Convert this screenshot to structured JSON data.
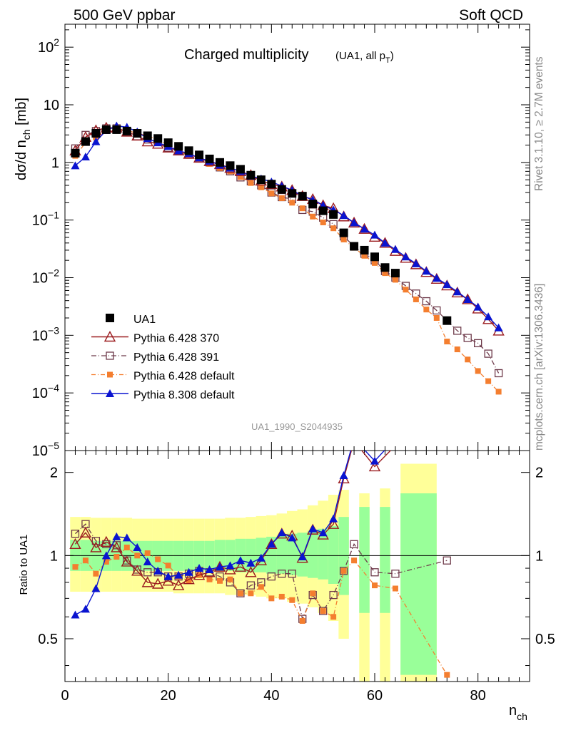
{
  "header": {
    "left": "500 GeV ppbar",
    "right": "Soft QCD"
  },
  "side": {
    "rivet": "Rivet 3.1.10, ≥ 2.7M events",
    "mcplots": "mcplots.cern.ch [arXiv:1306.3436]"
  },
  "title": {
    "main": "Charged multiplicity",
    "sub_prefix": "(UA1, all p",
    "sub_subscript": "T",
    "sub_suffix": ")"
  },
  "analysis_id": "UA1_1990_S2044935",
  "axes": {
    "ylabel_top": "dσ/d n",
    "ylabel_top_sub": "ch",
    "ylabel_top_unit": " [mb]",
    "ylabel_bottom": "Ratio to UA1",
    "xlabel": "n",
    "xlabel_sub": "ch",
    "xticks": [
      "0",
      "20",
      "40",
      "60",
      "80"
    ],
    "yticks_top": [
      {
        "v": 100,
        "base": "10",
        "exp": "2"
      },
      {
        "v": 10,
        "base": "10",
        "exp": ""
      },
      {
        "v": 1,
        "base": "1",
        "exp": ""
      },
      {
        "v": 0.1,
        "base": "10",
        "exp": "−1"
      },
      {
        "v": 0.01,
        "base": "10",
        "exp": "−2"
      },
      {
        "v": 0.001,
        "base": "10",
        "exp": "−3"
      },
      {
        "v": 0.0001,
        "base": "10",
        "exp": "−4"
      },
      {
        "v": 1e-05,
        "base": "10",
        "exp": "−5"
      }
    ],
    "yticks_bottom": [
      "0.5",
      "1",
      "2"
    ]
  },
  "legend": [
    {
      "label": "UA1",
      "series": "data"
    },
    {
      "label": "Pythia 6.428 370",
      "series": "p370"
    },
    {
      "label": "Pythia 6.428 391",
      "series": "p391"
    },
    {
      "label": "Pythia 6.428 default",
      "series": "p6def"
    },
    {
      "label": "Pythia 8.308 default",
      "series": "p8def"
    }
  ],
  "colors": {
    "data": "#000000",
    "p370": "#9b1b1f",
    "p391": "#6e3a4a",
    "p6def": "#f47e2f",
    "p8def": "#0a14d0",
    "band_inner": "#99ff99",
    "band_outer": "#ffff99"
  },
  "chart_data": {
    "type": "line",
    "x_range": [
      0,
      90
    ],
    "y_range_top": [
      1e-05,
      250
    ],
    "y_scale_top": "log",
    "y_range_bottom": [
      0.35,
      2.4
    ],
    "y_scale_bottom": "log",
    "legend_position": "lower-left",
    "series": [
      {
        "name": "UA1",
        "key": "data",
        "x": [
          2,
          4,
          6,
          8,
          10,
          12,
          14,
          16,
          18,
          20,
          22,
          24,
          26,
          28,
          30,
          32,
          34,
          36,
          38,
          40,
          42,
          44,
          46,
          48,
          50,
          52,
          54,
          56,
          58,
          60,
          62,
          64,
          74
        ],
        "y": [
          1.45,
          2.3,
          3.2,
          3.7,
          3.7,
          3.5,
          3.2,
          2.9,
          2.6,
          2.2,
          1.9,
          1.6,
          1.35,
          1.15,
          1.0,
          0.88,
          0.76,
          0.6,
          0.5,
          0.42,
          0.34,
          0.29,
          0.26,
          0.19,
          0.145,
          0.125,
          0.06,
          0.035,
          0.03,
          0.023,
          0.015,
          0.012,
          0.0018
        ]
      },
      {
        "name": "Pythia 6.428 370",
        "key": "p370",
        "x": [
          2,
          4,
          6,
          8,
          10,
          12,
          14,
          16,
          18,
          20,
          22,
          24,
          26,
          28,
          30,
          32,
          34,
          36,
          38,
          40,
          42,
          44,
          46,
          48,
          50,
          52,
          54,
          56,
          58,
          60,
          62,
          64,
          66,
          68,
          70,
          72,
          74,
          76,
          78,
          80,
          82,
          84
        ],
        "y": [
          1.6,
          2.75,
          3.6,
          4.0,
          4.0,
          3.4,
          2.9,
          2.3,
          2.1,
          1.8,
          1.6,
          1.4,
          1.2,
          1.05,
          0.93,
          0.8,
          0.7,
          0.6,
          0.48,
          0.42,
          0.38,
          0.33,
          0.26,
          0.23,
          0.18,
          0.16,
          0.115,
          0.09,
          0.07,
          0.051,
          0.04,
          0.029,
          0.022,
          0.017,
          0.0125,
          0.0095,
          0.0073,
          0.0055,
          0.0042,
          0.0029,
          0.0019,
          0.0012
        ]
      },
      {
        "name": "Pythia 6.428 391",
        "key": "p391",
        "x": [
          2,
          4,
          6,
          8,
          10,
          12,
          14,
          16,
          18,
          20,
          22,
          24,
          26,
          28,
          30,
          32,
          34,
          36,
          38,
          40,
          42,
          44,
          46,
          48,
          50,
          52,
          54,
          56,
          58,
          60,
          62,
          64,
          66,
          68,
          70,
          72,
          74,
          76,
          78,
          80,
          82,
          84
        ],
        "y": [
          1.75,
          3.0,
          3.5,
          3.9,
          3.9,
          3.35,
          2.85,
          2.5,
          2.25,
          1.8,
          1.6,
          1.4,
          1.2,
          1.0,
          0.82,
          0.7,
          0.55,
          0.47,
          0.4,
          0.3,
          0.25,
          0.23,
          0.15,
          0.14,
          0.11,
          0.085,
          0.052,
          0.035,
          0.026,
          0.02,
          0.013,
          0.01,
          0.0072,
          0.0053,
          0.0039,
          0.0027,
          0.0018,
          0.0012,
          0.0009,
          0.00073,
          0.00048,
          0.00022
        ]
      },
      {
        "name": "Pythia 6.428 default",
        "key": "p6def",
        "x": [
          2,
          4,
          6,
          8,
          10,
          12,
          14,
          16,
          18,
          20,
          22,
          24,
          26,
          28,
          30,
          32,
          34,
          36,
          38,
          40,
          42,
          44,
          46,
          48,
          50,
          52,
          54,
          56,
          58,
          60,
          62,
          64,
          66,
          68,
          70,
          72,
          74,
          76,
          78,
          80,
          82,
          84
        ],
        "y": [
          1.3,
          2.2,
          2.7,
          3.5,
          3.65,
          3.6,
          3.2,
          2.9,
          2.5,
          2.0,
          1.6,
          1.3,
          1.15,
          0.94,
          0.8,
          0.7,
          0.56,
          0.44,
          0.37,
          0.29,
          0.24,
          0.2,
          0.16,
          0.115,
          0.091,
          0.072,
          0.046,
          0.033,
          0.024,
          0.018,
          0.012,
          0.0092,
          0.0062,
          0.0042,
          0.0028,
          0.002,
          0.00078,
          0.00057,
          0.00038,
          0.00024,
          0.00016,
          0.000105
        ]
      },
      {
        "name": "Pythia 8.308 default",
        "key": "p8def",
        "x": [
          2,
          4,
          6,
          8,
          10,
          12,
          14,
          16,
          18,
          20,
          22,
          24,
          26,
          28,
          30,
          32,
          34,
          36,
          38,
          40,
          42,
          44,
          46,
          48,
          50,
          52,
          54,
          56,
          58,
          60,
          62,
          64,
          66,
          68,
          70,
          72,
          74,
          76,
          78,
          80,
          82,
          84
        ],
        "y": [
          0.88,
          1.25,
          2.3,
          3.6,
          4.3,
          4.1,
          3.4,
          2.6,
          2.2,
          1.9,
          1.6,
          1.42,
          1.2,
          1.05,
          0.9,
          0.8,
          0.7,
          0.58,
          0.52,
          0.46,
          0.39,
          0.33,
          0.26,
          0.225,
          0.18,
          0.15,
          0.12,
          0.09,
          0.07,
          0.055,
          0.04,
          0.031,
          0.023,
          0.0175,
          0.013,
          0.0098,
          0.0076,
          0.0057,
          0.0042,
          0.0031,
          0.0021,
          0.00135
        ]
      }
    ],
    "ratio_series": [
      {
        "key": "p370",
        "x": [
          2,
          4,
          6,
          8,
          10,
          12,
          14,
          16,
          18,
          20,
          22,
          24,
          26,
          28,
          30,
          32,
          34,
          36,
          38,
          40,
          42,
          44,
          46,
          48,
          50,
          52,
          54,
          56,
          60,
          64
        ],
        "y": [
          1.1,
          1.21,
          1.07,
          1.12,
          1.07,
          0.95,
          0.88,
          0.8,
          0.79,
          0.81,
          0.78,
          0.82,
          0.85,
          0.87,
          0.91,
          0.89,
          0.91,
          0.87,
          0.96,
          1.1,
          1.2,
          1.18,
          0.98,
          1.24,
          1.19,
          1.3,
          1.9,
          2.6,
          2.1,
          2.5
        ]
      },
      {
        "key": "p391",
        "x": [
          2,
          4,
          6,
          8,
          10,
          12,
          14,
          16,
          18,
          20,
          22,
          24,
          26,
          28,
          30,
          32,
          34,
          36,
          38,
          40,
          42,
          44,
          46,
          48,
          50,
          52,
          54,
          56,
          60,
          64,
          74
        ],
        "y": [
          1.2,
          1.3,
          1.13,
          1.1,
          1.09,
          0.96,
          0.89,
          0.87,
          0.87,
          0.84,
          0.84,
          0.86,
          0.88,
          0.87,
          0.84,
          0.8,
          0.73,
          0.78,
          0.8,
          0.84,
          0.86,
          0.86,
          0.59,
          0.72,
          0.63,
          0.72,
          0.88,
          1.1,
          0.87,
          0.86,
          0.96
        ]
      },
      {
        "key": "p6def",
        "x": [
          2,
          4,
          6,
          8,
          10,
          12,
          14,
          16,
          18,
          20,
          22,
          24,
          26,
          28,
          30,
          32,
          34,
          36,
          38,
          40,
          42,
          44,
          46,
          48,
          50,
          52,
          54,
          56,
          60,
          64,
          74
        ],
        "y": [
          0.91,
          0.96,
          0.86,
          0.95,
          0.99,
          1.07,
          1.0,
          1.02,
          0.97,
          0.92,
          0.84,
          0.81,
          0.85,
          0.82,
          0.81,
          0.82,
          0.73,
          0.73,
          0.77,
          0.7,
          0.71,
          0.69,
          0.58,
          0.73,
          0.63,
          0.6,
          0.88,
          0.96,
          0.78,
          0.76,
          0.37
        ]
      },
      {
        "key": "p8def",
        "x": [
          2,
          4,
          6,
          8,
          10,
          12,
          14,
          16,
          18,
          20,
          22,
          24,
          26,
          28,
          30,
          32,
          34,
          36,
          38,
          40,
          42,
          44,
          46,
          48,
          50,
          52,
          54,
          56,
          60,
          64
        ],
        "y": [
          0.61,
          0.64,
          0.76,
          1.0,
          1.17,
          1.16,
          1.07,
          0.95,
          0.88,
          0.84,
          0.85,
          0.87,
          0.9,
          0.89,
          0.91,
          0.92,
          0.96,
          0.94,
          0.98,
          1.1,
          1.21,
          1.16,
          0.99,
          1.25,
          1.21,
          1.36,
          1.95,
          2.65,
          2.2,
          2.65
        ]
      }
    ],
    "uncertainty_bands": {
      "x_edges": [
        1,
        3,
        5,
        7,
        9,
        11,
        13,
        15,
        17,
        19,
        21,
        23,
        25,
        27,
        29,
        31,
        33,
        35,
        37,
        39,
        41,
        43,
        45,
        47,
        49,
        51,
        53,
        55,
        57,
        59,
        61,
        63,
        65,
        72,
        76
      ],
      "inner": [
        [
          0.88,
          1.14
        ],
        [
          0.88,
          1.14
        ],
        [
          0.88,
          1.13
        ],
        [
          0.88,
          1.13
        ],
        [
          0.88,
          1.13
        ],
        [
          0.88,
          1.13
        ],
        [
          0.88,
          1.13
        ],
        [
          0.88,
          1.13
        ],
        [
          0.88,
          1.13
        ],
        [
          0.88,
          1.13
        ],
        [
          0.88,
          1.13
        ],
        [
          0.88,
          1.13
        ],
        [
          0.88,
          1.13
        ],
        [
          0.88,
          1.13
        ],
        [
          0.88,
          1.14
        ],
        [
          0.88,
          1.14
        ],
        [
          0.87,
          1.15
        ],
        [
          0.87,
          1.15
        ],
        [
          0.87,
          1.16
        ],
        [
          0.86,
          1.17
        ],
        [
          0.86,
          1.18
        ],
        [
          0.85,
          1.2
        ],
        [
          0.84,
          1.21
        ],
        [
          0.83,
          1.23
        ],
        [
          0.82,
          1.25
        ],
        [
          0.79,
          1.28
        ],
        [
          0.72,
          1.38
        ],
        null,
        [
          0.62,
          1.5
        ],
        null,
        [
          0.62,
          1.5
        ],
        null,
        [
          0.37,
          1.68
        ],
        null
      ],
      "outer": [
        [
          0.74,
          1.38
        ],
        [
          0.74,
          1.38
        ],
        [
          0.74,
          1.37
        ],
        [
          0.74,
          1.37
        ],
        [
          0.74,
          1.37
        ],
        [
          0.74,
          1.37
        ],
        [
          0.74,
          1.36
        ],
        [
          0.74,
          1.36
        ],
        [
          0.74,
          1.36
        ],
        [
          0.74,
          1.36
        ],
        [
          0.73,
          1.36
        ],
        [
          0.73,
          1.36
        ],
        [
          0.73,
          1.36
        ],
        [
          0.73,
          1.36
        ],
        [
          0.73,
          1.36
        ],
        [
          0.72,
          1.37
        ],
        [
          0.72,
          1.37
        ],
        [
          0.72,
          1.38
        ],
        [
          0.71,
          1.39
        ],
        [
          0.7,
          1.4
        ],
        [
          0.7,
          1.42
        ],
        [
          0.68,
          1.45
        ],
        [
          0.67,
          1.47
        ],
        [
          0.65,
          1.52
        ],
        [
          0.62,
          1.58
        ],
        [
          0.58,
          1.66
        ],
        [
          0.5,
          1.73
        ],
        null,
        [
          0.35,
          1.68
        ],
        null,
        [
          0.35,
          1.75
        ],
        null,
        [
          0.35,
          2.15
        ],
        null
      ]
    }
  }
}
